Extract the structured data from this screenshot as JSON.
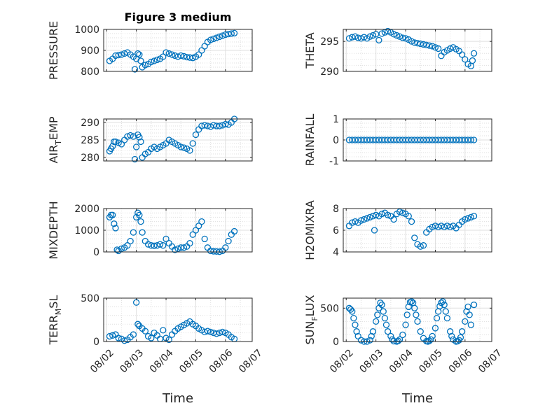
{
  "figure": {
    "title": "Figure 3 medium",
    "xlabel": "Time"
  },
  "colors": {
    "marker": "#0072bd",
    "axis": "#262626",
    "grid": "#dfdfdf",
    "background": "#ffffff"
  },
  "chart_data": [
    {
      "type": "scatter",
      "title": "Figure 3 medium",
      "ylabel": "PRESSURE",
      "xlabel": "",
      "ylim": [
        800,
        1000
      ],
      "yticks": [
        800,
        900,
        1000
      ],
      "xlim": [
        -0.1,
        4.9
      ],
      "xticks": [
        0,
        1,
        2,
        3,
        4,
        5
      ],
      "xticklabels": [
        "08/02",
        "08/03",
        "08/04",
        "08/05",
        "08/06",
        "08/07"
      ],
      "grid": true,
      "x": [
        0.1,
        0.2,
        0.3,
        0.4,
        0.5,
        0.6,
        0.7,
        0.8,
        0.9,
        0.95,
        1.0,
        1.05,
        1.1,
        1.15,
        1.2,
        1.3,
        1.4,
        1.5,
        1.6,
        1.7,
        1.8,
        1.9,
        2.0,
        2.1,
        2.2,
        2.3,
        2.4,
        2.5,
        2.6,
        2.7,
        2.8,
        2.9,
        3.0,
        3.1,
        3.2,
        3.3,
        3.4,
        3.5,
        3.6,
        3.7,
        3.8,
        3.9,
        4.0,
        4.1,
        4.2,
        4.3
      ],
      "y": [
        850,
        860,
        875,
        878,
        880,
        885,
        890,
        880,
        870,
        810,
        860,
        885,
        880,
        850,
        820,
        830,
        835,
        845,
        850,
        855,
        860,
        870,
        890,
        885,
        880,
        875,
        870,
        875,
        872,
        868,
        866,
        864,
        870,
        880,
        900,
        920,
        940,
        950,
        955,
        960,
        965,
        970,
        975,
        978,
        980,
        982
      ]
    },
    {
      "type": "scatter",
      "ylabel": "THETA",
      "xlabel": "",
      "ylim": [
        290,
        297
      ],
      "yticks": [
        290,
        295
      ],
      "xlim": [
        -0.1,
        4.9
      ],
      "xticks": [
        0,
        1,
        2,
        3,
        4,
        5
      ],
      "xticklabels": [
        "08/02",
        "08/03",
        "08/04",
        "08/05",
        "08/06",
        "08/07"
      ],
      "grid": true,
      "x": [
        0.1,
        0.2,
        0.3,
        0.4,
        0.5,
        0.6,
        0.7,
        0.8,
        0.9,
        1.0,
        1.1,
        1.2,
        1.3,
        1.4,
        1.5,
        1.6,
        1.7,
        1.8,
        1.9,
        2.0,
        2.1,
        2.2,
        2.3,
        2.4,
        2.5,
        2.6,
        2.7,
        2.8,
        2.9,
        3.0,
        3.1,
        3.2,
        3.3,
        3.4,
        3.5,
        3.6,
        3.7,
        3.8,
        3.9,
        4.0,
        4.1,
        4.2,
        4.25,
        4.3
      ],
      "y": [
        295.5,
        295.7,
        295.8,
        295.6,
        295.5,
        295.7,
        295.5,
        295.8,
        296.0,
        296.2,
        295.2,
        296.3,
        296.5,
        296.7,
        296.5,
        296.2,
        296.0,
        295.8,
        295.6,
        295.5,
        295.3,
        295.0,
        294.8,
        294.7,
        294.6,
        294.5,
        294.4,
        294.3,
        294.2,
        294.0,
        293.8,
        292.6,
        293.2,
        293.5,
        293.8,
        294.0,
        293.7,
        293.4,
        292.8,
        292.0,
        291.2,
        290.9,
        291.8,
        293.0
      ]
    },
    {
      "type": "scatter",
      "ylabel": "AIR_TEMP",
      "xlabel": "",
      "ylim": [
        279,
        291
      ],
      "yticks": [
        280,
        285,
        290
      ],
      "xlim": [
        -0.1,
        4.9
      ],
      "xticks": [
        0,
        1,
        2,
        3,
        4,
        5
      ],
      "xticklabels": [
        "08/02",
        "08/03",
        "08/04",
        "08/05",
        "08/06",
        "08/07"
      ],
      "grid": true,
      "x": [
        0.1,
        0.15,
        0.2,
        0.25,
        0.3,
        0.4,
        0.5,
        0.6,
        0.7,
        0.8,
        0.9,
        0.95,
        1.0,
        1.05,
        1.1,
        1.15,
        1.2,
        1.3,
        1.4,
        1.5,
        1.6,
        1.7,
        1.8,
        1.9,
        2.0,
        2.1,
        2.2,
        2.3,
        2.4,
        2.5,
        2.6,
        2.7,
        2.8,
        2.9,
        3.0,
        3.1,
        3.2,
        3.3,
        3.4,
        3.5,
        3.6,
        3.7,
        3.8,
        3.9,
        4.0,
        4.1,
        4.2,
        4.3
      ],
      "y": [
        281.8,
        282.5,
        283.2,
        284.5,
        284.5,
        284.2,
        283.8,
        285.0,
        286.0,
        286.3,
        286.0,
        279.5,
        283.0,
        286.5,
        285.8,
        284.5,
        280.0,
        281.0,
        281.5,
        282.5,
        283.0,
        282.5,
        283.0,
        283.5,
        284.0,
        285.0,
        284.5,
        284.0,
        283.5,
        283.0,
        282.8,
        282.5,
        282.0,
        284.0,
        286.5,
        288.0,
        289.0,
        289.2,
        289.0,
        288.8,
        289.2,
        289.0,
        289.0,
        289.2,
        289.5,
        289.4,
        290.0,
        291.0
      ]
    },
    {
      "type": "scatter",
      "ylabel": "RAINFALL",
      "xlabel": "",
      "ylim": [
        -1,
        1
      ],
      "yticks": [
        -1,
        0,
        1
      ],
      "xlim": [
        -0.1,
        4.9
      ],
      "xticks": [
        0,
        1,
        2,
        3,
        4,
        5
      ],
      "xticklabels": [
        "08/02",
        "08/03",
        "08/04",
        "08/05",
        "08/06",
        "08/07"
      ],
      "grid": true,
      "x": [
        0.1,
        0.2,
        0.3,
        0.4,
        0.5,
        0.6,
        0.7,
        0.8,
        0.9,
        1.0,
        1.1,
        1.2,
        1.3,
        1.4,
        1.5,
        1.6,
        1.7,
        1.8,
        1.9,
        2.0,
        2.1,
        2.2,
        2.3,
        2.4,
        2.5,
        2.6,
        2.7,
        2.8,
        2.9,
        3.0,
        3.1,
        3.2,
        3.3,
        3.4,
        3.5,
        3.6,
        3.7,
        3.8,
        3.9,
        4.0,
        4.1,
        4.2,
        4.3
      ],
      "y": [
        0,
        0,
        0,
        0,
        0,
        0,
        0,
        0,
        0,
        0,
        0,
        0,
        0,
        0,
        0,
        0,
        0,
        0,
        0,
        0,
        0,
        0,
        0,
        0,
        0,
        0,
        0,
        0,
        0,
        0,
        0,
        0,
        0,
        0,
        0,
        0,
        0,
        0,
        0,
        0,
        0,
        0,
        0
      ]
    },
    {
      "type": "scatter",
      "ylabel": "MIXDEPTH",
      "xlabel": "",
      "ylim": [
        0,
        2000
      ],
      "yticks": [
        0,
        1000,
        2000
      ],
      "xlim": [
        -0.1,
        4.9
      ],
      "xticks": [
        0,
        1,
        2,
        3,
        4,
        5
      ],
      "xticklabels": [
        "08/02",
        "08/03",
        "08/04",
        "08/05",
        "08/06",
        "08/07"
      ],
      "grid": true,
      "x": [
        0.1,
        0.15,
        0.2,
        0.25,
        0.3,
        0.35,
        0.4,
        0.5,
        0.6,
        0.7,
        0.8,
        0.9,
        1.0,
        1.05,
        1.1,
        1.15,
        1.2,
        1.3,
        1.4,
        1.5,
        1.6,
        1.7,
        1.8,
        1.9,
        2.0,
        2.1,
        2.2,
        2.3,
        2.4,
        2.5,
        2.6,
        2.7,
        2.8,
        2.9,
        3.0,
        3.1,
        3.2,
        3.3,
        3.4,
        3.5,
        3.6,
        3.7,
        3.8,
        3.9,
        4.0,
        4.1,
        4.2,
        4.3
      ],
      "y": [
        1600,
        1700,
        1700,
        1300,
        1100,
        100,
        50,
        150,
        200,
        300,
        500,
        900,
        1600,
        1800,
        1700,
        1400,
        900,
        500,
        350,
        300,
        280,
        300,
        350,
        300,
        600,
        400,
        250,
        100,
        150,
        200,
        200,
        250,
        400,
        800,
        1000,
        1200,
        1400,
        600,
        200,
        50,
        30,
        20,
        10,
        50,
        200,
        500,
        800,
        950
      ]
    },
    {
      "type": "scatter",
      "ylabel": "H2OMIXRA",
      "xlabel": "",
      "ylim": [
        4,
        8
      ],
      "yticks": [
        4,
        6,
        8
      ],
      "xlim": [
        -0.1,
        4.9
      ],
      "xticks": [
        0,
        1,
        2,
        3,
        4,
        5
      ],
      "xticklabels": [
        "08/02",
        "08/03",
        "08/04",
        "08/05",
        "08/06",
        "08/07"
      ],
      "grid": true,
      "x": [
        0.1,
        0.2,
        0.3,
        0.4,
        0.5,
        0.6,
        0.7,
        0.8,
        0.9,
        0.95,
        1.0,
        1.1,
        1.2,
        1.3,
        1.4,
        1.5,
        1.6,
        1.7,
        1.8,
        1.9,
        2.0,
        2.1,
        2.2,
        2.3,
        2.4,
        2.5,
        2.6,
        2.7,
        2.8,
        2.9,
        3.0,
        3.1,
        3.2,
        3.3,
        3.4,
        3.5,
        3.6,
        3.7,
        3.8,
        3.9,
        4.0,
        4.1,
        4.2,
        4.3
      ],
      "y": [
        6.4,
        6.7,
        6.8,
        6.7,
        6.9,
        7.0,
        7.1,
        7.2,
        7.3,
        6.0,
        7.4,
        7.3,
        7.5,
        7.6,
        7.4,
        7.3,
        7.0,
        7.5,
        7.7,
        7.6,
        7.5,
        7.3,
        6.8,
        5.3,
        4.7,
        4.5,
        4.6,
        5.8,
        6.1,
        6.3,
        6.4,
        6.3,
        6.4,
        6.3,
        6.4,
        6.3,
        6.4,
        6.2,
        6.5,
        6.8,
        7.0,
        7.1,
        7.2,
        7.3
      ]
    },
    {
      "type": "scatter",
      "ylabel": "TERR_MSL",
      "xlabel": "",
      "ylim": [
        0,
        500
      ],
      "yticks": [
        0,
        500
      ],
      "xlim": [
        -0.1,
        4.9
      ],
      "xticks": [
        0,
        1,
        2,
        3,
        4,
        5
      ],
      "xticklabels": [
        "08/02",
        "08/03",
        "08/04",
        "08/05",
        "08/06",
        "08/07"
      ],
      "grid": true,
      "x": [
        0.1,
        0.2,
        0.3,
        0.4,
        0.5,
        0.6,
        0.7,
        0.8,
        0.9,
        1.0,
        1.05,
        1.1,
        1.2,
        1.3,
        1.4,
        1.5,
        1.6,
        1.7,
        1.8,
        1.9,
        2.0,
        2.1,
        2.2,
        2.3,
        2.4,
        2.5,
        2.6,
        2.7,
        2.8,
        2.9,
        3.0,
        3.1,
        3.2,
        3.3,
        3.4,
        3.5,
        3.6,
        3.7,
        3.8,
        3.9,
        4.0,
        4.1,
        4.2,
        4.3
      ],
      "y": [
        60,
        70,
        80,
        40,
        30,
        10,
        20,
        50,
        80,
        450,
        200,
        180,
        150,
        120,
        60,
        40,
        100,
        70,
        30,
        130,
        40,
        20,
        80,
        120,
        150,
        170,
        190,
        210,
        230,
        200,
        180,
        150,
        130,
        110,
        120,
        110,
        100,
        90,
        100,
        110,
        100,
        80,
        50,
        30
      ]
    },
    {
      "type": "scatter",
      "ylabel": "SUN_FLUX",
      "xlabel": "",
      "ylim": [
        0,
        650
      ],
      "yticks": [
        0,
        500
      ],
      "xlim": [
        -0.1,
        4.9
      ],
      "xticks": [
        0,
        1,
        2,
        3,
        4,
        5
      ],
      "xticklabels": [
        "08/02",
        "08/03",
        "08/04",
        "08/05",
        "08/06",
        "08/07"
      ],
      "grid": true,
      "x": [
        0.1,
        0.15,
        0.2,
        0.25,
        0.3,
        0.35,
        0.4,
        0.5,
        0.6,
        0.7,
        0.8,
        0.85,
        0.9,
        1.0,
        1.05,
        1.1,
        1.15,
        1.2,
        1.25,
        1.3,
        1.35,
        1.4,
        1.5,
        1.55,
        1.6,
        1.7,
        1.75,
        1.8,
        1.9,
        2.0,
        2.05,
        2.1,
        2.15,
        2.2,
        2.25,
        2.3,
        2.35,
        2.4,
        2.5,
        2.6,
        2.7,
        2.75,
        2.8,
        2.85,
        2.9,
        3.0,
        3.05,
        3.1,
        3.15,
        3.2,
        3.25,
        3.3,
        3.35,
        3.4,
        3.5,
        3.55,
        3.6,
        3.7,
        3.75,
        3.8,
        3.85,
        3.9,
        4.0,
        4.05,
        4.1,
        4.15,
        4.2,
        4.3
      ],
      "y": [
        500,
        480,
        450,
        350,
        250,
        150,
        80,
        20,
        0,
        0,
        20,
        80,
        150,
        300,
        400,
        500,
        580,
        550,
        450,
        350,
        250,
        150,
        80,
        30,
        5,
        0,
        10,
        30,
        100,
        250,
        400,
        520,
        590,
        600,
        580,
        500,
        400,
        300,
        150,
        50,
        5,
        0,
        10,
        30,
        80,
        200,
        350,
        450,
        530,
        580,
        600,
        550,
        450,
        350,
        150,
        80,
        30,
        0,
        5,
        20,
        60,
        150,
        300,
        450,
        520,
        400,
        250,
        550
      ]
    }
  ]
}
